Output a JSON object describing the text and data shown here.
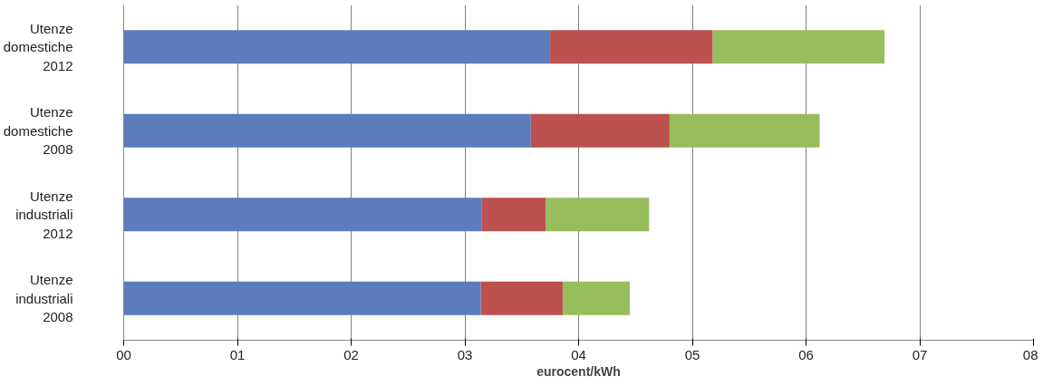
{
  "chart_data": {
    "type": "bar",
    "orientation": "horizontal",
    "stacked": true,
    "xlabel": "eurocent/kWh",
    "categories": [
      "Utenze\ndomestiche\n2012",
      "Utenze\ndomestiche\n2008",
      "Utenze\nindustriali\n2012",
      "Utenze\nindustriali\n2008"
    ],
    "series": [
      {
        "color": "#5b7cbd",
        "values": [
          3.75,
          3.58,
          3.15,
          3.14
        ]
      },
      {
        "color": "#bc5150",
        "values": [
          1.43,
          1.22,
          0.56,
          0.72
        ]
      },
      {
        "color": "#97bd5c",
        "values": [
          1.51,
          1.32,
          0.91,
          0.59
        ]
      }
    ],
    "xlim": [
      0,
      8
    ],
    "xticks": [
      {
        "value": 0,
        "label": "00"
      },
      {
        "value": 1,
        "label": "01"
      },
      {
        "value": 2,
        "label": "02"
      },
      {
        "value": 3,
        "label": "03"
      },
      {
        "value": 4,
        "label": "04"
      },
      {
        "value": 5,
        "label": "05"
      },
      {
        "value": 6,
        "label": "06"
      },
      {
        "value": 7,
        "label": "07"
      },
      {
        "value": 8,
        "label": "08"
      }
    ],
    "grid": "x"
  }
}
